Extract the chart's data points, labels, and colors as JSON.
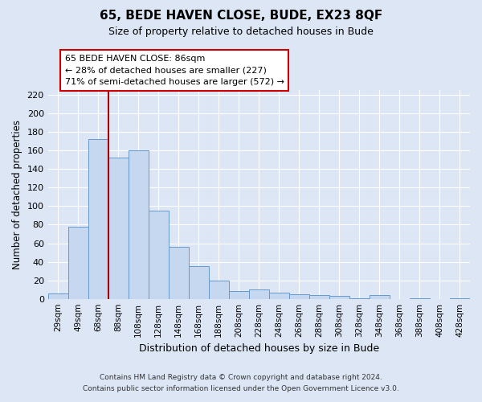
{
  "title": "65, BEDE HAVEN CLOSE, BUDE, EX23 8QF",
  "subtitle": "Size of property relative to detached houses in Bude",
  "xlabel": "Distribution of detached houses by size in Bude",
  "ylabel": "Number of detached properties",
  "bar_labels": [
    "29sqm",
    "49sqm",
    "68sqm",
    "88sqm",
    "108sqm",
    "128sqm",
    "148sqm",
    "168sqm",
    "188sqm",
    "208sqm",
    "228sqm",
    "248sqm",
    "268sqm",
    "288sqm",
    "308sqm",
    "328sqm",
    "348sqm",
    "368sqm",
    "388sqm",
    "408sqm",
    "428sqm"
  ],
  "bar_values": [
    6,
    78,
    172,
    152,
    160,
    95,
    56,
    35,
    20,
    8,
    10,
    7,
    5,
    4,
    3,
    1,
    4,
    0,
    1,
    0,
    1
  ],
  "bar_color": "#c5d8f0",
  "bar_edge_color": "#6699cc",
  "ylim": [
    0,
    225
  ],
  "yticks": [
    0,
    20,
    40,
    60,
    80,
    100,
    120,
    140,
    160,
    180,
    200,
    220
  ],
  "vline_color": "#aa0000",
  "annotation_title": "65 BEDE HAVEN CLOSE: 86sqm",
  "annotation_line1": "← 28% of detached houses are smaller (227)",
  "annotation_line2": "71% of semi-detached houses are larger (572) →",
  "annotation_box_color": "#ffffff",
  "annotation_box_edge": "#cc0000",
  "footer1": "Contains HM Land Registry data © Crown copyright and database right 2024.",
  "footer2": "Contains public sector information licensed under the Open Government Licence v3.0.",
  "bg_color": "#dce6f5",
  "plot_bg_color": "#dce6f5",
  "grid_color": "#ffffff"
}
